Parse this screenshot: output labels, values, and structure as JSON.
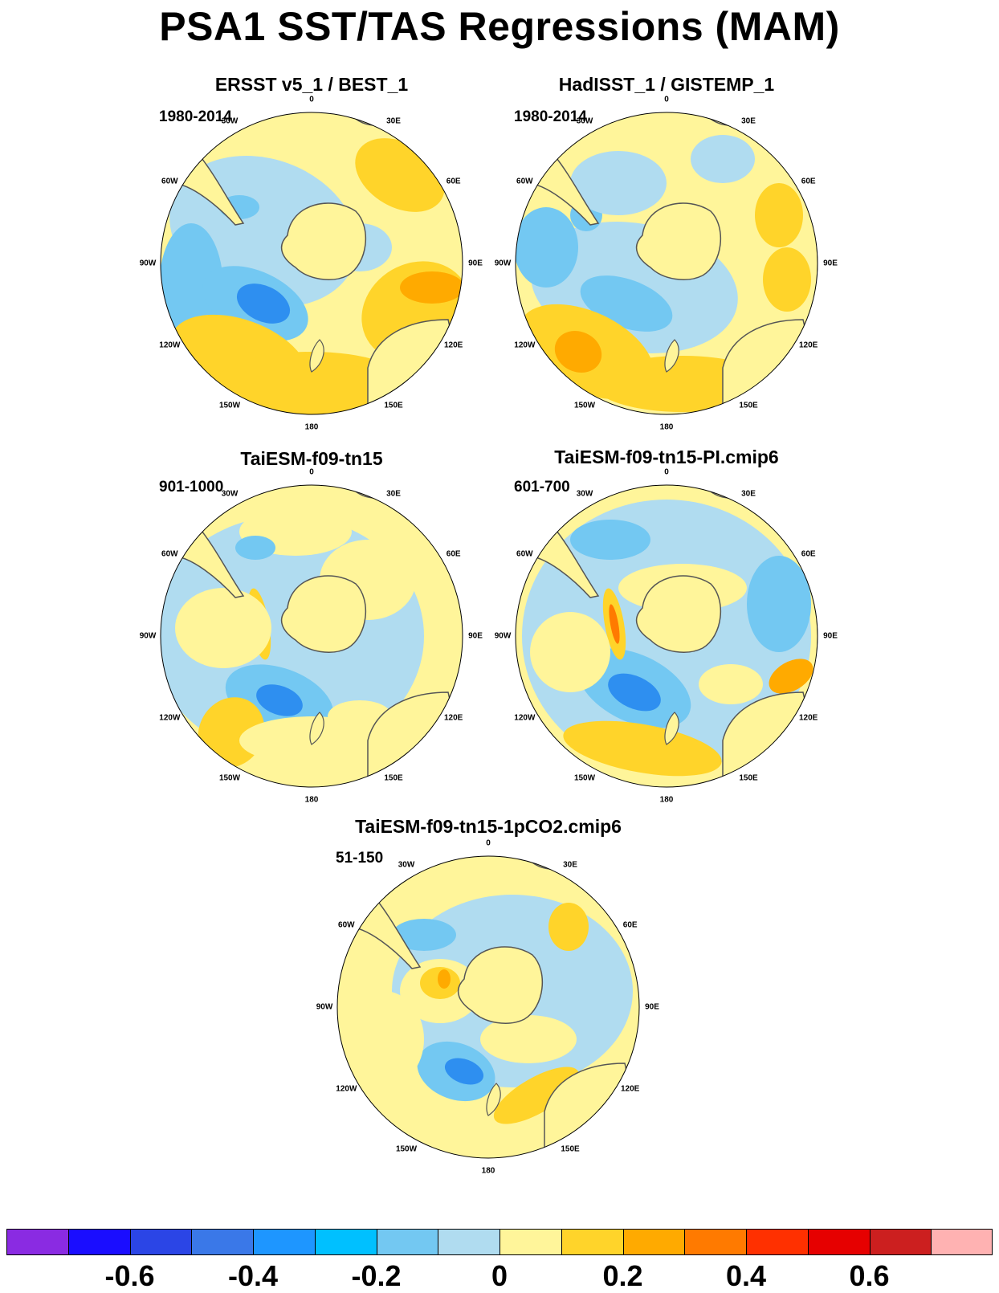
{
  "title": "PSA1 SST/TAS Regressions (MAM)",
  "panels": [
    {
      "title": "ERSST v5_1 / BEST_1",
      "period": "1980-2014"
    },
    {
      "title": "HadISST_1 / GISTEMP_1",
      "period": "1980-2014"
    },
    {
      "title": "TaiESM-f09-tn15",
      "period": "901-1000"
    },
    {
      "title": "TaiESM-f09-tn15-PI.cmip6",
      "period": "601-700"
    },
    {
      "title": "TaiESM-f09-tn15-1pCO2.cmip6",
      "period": "51-150"
    }
  ],
  "longitude_labels": [
    "0",
    "30E",
    "60E",
    "90E",
    "120E",
    "150E",
    "180",
    "150W",
    "120W",
    "90W",
    "60W",
    "30W"
  ],
  "colorbar": {
    "colors": [
      "#8a2be2",
      "#1a0dff",
      "#2b45e6",
      "#3a78e8",
      "#1e96ff",
      "#00c0ff",
      "#73c8f2",
      "#b0dcf0",
      "#fff59a",
      "#ffd42a",
      "#ffaa00",
      "#ff7a00",
      "#ff3000",
      "#e60000",
      "#cc1f1f",
      "#ffb2b2"
    ],
    "labels": [
      "-0.6",
      "-0.4",
      "-0.2",
      "0",
      "0.2",
      "0.4",
      "0.6"
    ]
  },
  "map_colors": {
    "ocean_dark_blue": "#2e8ff0",
    "ocean_blue": "#73c8f2",
    "ocean_light_blue": "#b0dcf0",
    "ocean_yellow": "#fff59a",
    "ocean_gold": "#ffd42a",
    "ocean_orange": "#ffaa00",
    "ocean_dark_orange": "#ff7a00",
    "land": "#fff59a",
    "coast": "#555555"
  }
}
